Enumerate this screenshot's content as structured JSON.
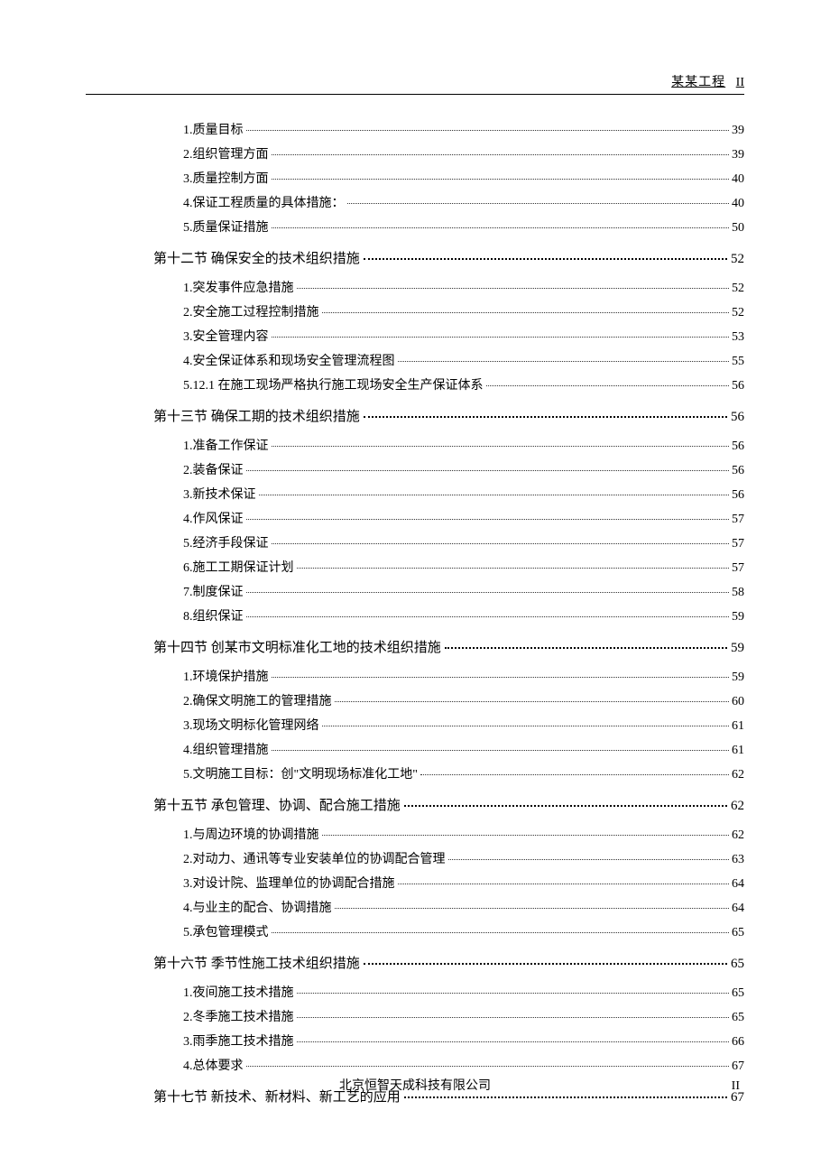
{
  "header": {
    "project": "某某工程",
    "pageRoman": "II"
  },
  "footer": {
    "company": "北京恒智天成科技有限公司",
    "pageRoman": "II"
  },
  "style": {
    "background": "#ffffff",
    "textColor": "#000000",
    "sectionFontSize": 15,
    "subFontSize": 14,
    "fontFamily": "SimSun"
  },
  "toc": [
    {
      "type": "subgroup",
      "items": [
        {
          "num": "1.",
          "label": "质量目标",
          "page": "39"
        },
        {
          "num": "2.",
          "label": "组织管理方面",
          "page": "39"
        },
        {
          "num": "3.",
          "label": "质量控制方面",
          "page": "40"
        },
        {
          "num": "4.",
          "label": "保证工程质量的具体措施：",
          "page": "40"
        },
        {
          "num": "5.",
          "label": "质量保证措施",
          "page": "50"
        }
      ]
    },
    {
      "type": "section",
      "label": "第十二节  确保安全的技术组织措施",
      "page": "52",
      "items": [
        {
          "num": "1.",
          "label": "突发事件应急措施",
          "page": "52"
        },
        {
          "num": "2.",
          "label": "安全施工过程控制措施",
          "page": "52"
        },
        {
          "num": "3.",
          "label": "安全管理内容",
          "page": "53"
        },
        {
          "num": "4.",
          "label": "安全保证体系和现场安全管理流程图",
          "page": "55"
        },
        {
          "num": "5.",
          "label": "12.1 在施工现场严格执行施工现场安全生产保证体系",
          "page": "56"
        }
      ]
    },
    {
      "type": "section",
      "label": "第十三节  确保工期的技术组织措施",
      "page": "56",
      "items": [
        {
          "num": "1.",
          "label": "准备工作保证",
          "page": "56"
        },
        {
          "num": "2.",
          "label": "装备保证",
          "page": "56"
        },
        {
          "num": "3.",
          "label": "新技术保证",
          "page": "56"
        },
        {
          "num": "4.",
          "label": "作风保证",
          "page": "57"
        },
        {
          "num": "5.",
          "label": "经济手段保证",
          "page": "57"
        },
        {
          "num": "6.",
          "label": "施工工期保证计划",
          "page": "57"
        },
        {
          "num": "7.",
          "label": "制度保证",
          "page": "58"
        },
        {
          "num": "8.",
          "label": "组织保证",
          "page": "59"
        }
      ]
    },
    {
      "type": "section",
      "label": "第十四节  创某市文明标准化工地的技术组织措施",
      "page": "59",
      "items": [
        {
          "num": "1.",
          "label": "环境保护措施",
          "page": "59"
        },
        {
          "num": "2.",
          "label": "确保文明施工的管理措施",
          "page": "60"
        },
        {
          "num": "3.",
          "label": "现场文明标化管理网络",
          "page": "61"
        },
        {
          "num": "4.",
          "label": "组织管理措施",
          "page": "61"
        },
        {
          "num": "5.",
          "label": "文明施工目标：创\"文明现场标准化工地\"",
          "page": "62"
        }
      ]
    },
    {
      "type": "section",
      "label": "第十五节  承包管理、协调、配合施工措施",
      "page": "62",
      "items": [
        {
          "num": "1.",
          "label": "与周边环境的协调措施",
          "page": "62"
        },
        {
          "num": "2.",
          "label": "对动力、通讯等专业安装单位的协调配合管理",
          "page": "63"
        },
        {
          "num": "3.",
          "label": "对设计院、监理单位的协调配合措施",
          "page": "64"
        },
        {
          "num": "4.",
          "label": "与业主的配合、协调措施",
          "page": "64"
        },
        {
          "num": "5.",
          "label": "承包管理模式",
          "page": "65"
        }
      ]
    },
    {
      "type": "section",
      "label": "第十六节  季节性施工技术组织措施",
      "page": "65",
      "items": [
        {
          "num": "1.",
          "label": "夜间施工技术措施",
          "page": "65"
        },
        {
          "num": "2.",
          "label": "冬季施工技术措施",
          "page": "65"
        },
        {
          "num": "3.",
          "label": "雨季施工技术措施",
          "page": "66"
        },
        {
          "num": "4.",
          "label": "总体要求",
          "page": "67"
        }
      ]
    },
    {
      "type": "section",
      "label": "第十七节  新技术、新材料、新工艺的应用",
      "page": "67",
      "items": []
    }
  ]
}
